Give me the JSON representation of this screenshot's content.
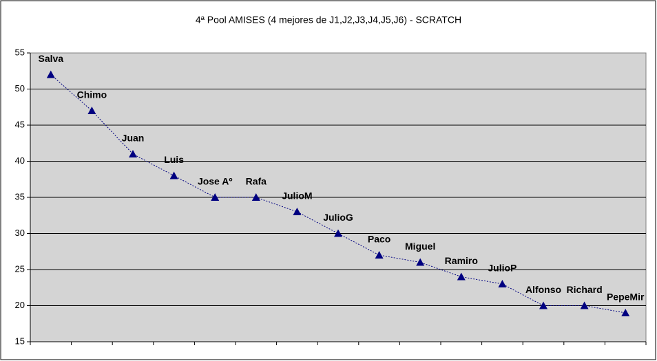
{
  "chart_data": {
    "type": "line",
    "title": "4ª Pool AMISES (4 mejores de J1,J2,J3,J4,J5,J6) - SCRATCH",
    "categories": [
      "Salva",
      "Chimo",
      "Juan",
      "Luis",
      "Jose Aº",
      "Rafa",
      "JulioM",
      "JulioG",
      "Paco",
      "Miguel",
      "Ramiro",
      "JulioP",
      "Alfonso",
      "Richard",
      "PepeMir"
    ],
    "series": [
      {
        "color": "#000080",
        "values": [
          52,
          47,
          41,
          38,
          35,
          35,
          33,
          30,
          27,
          26,
          24,
          23,
          20,
          20,
          19
        ]
      }
    ],
    "ylim": [
      15,
      55
    ],
    "yticks": [
      15,
      20,
      25,
      30,
      35,
      40,
      45,
      50,
      55
    ],
    "grid": true
  }
}
